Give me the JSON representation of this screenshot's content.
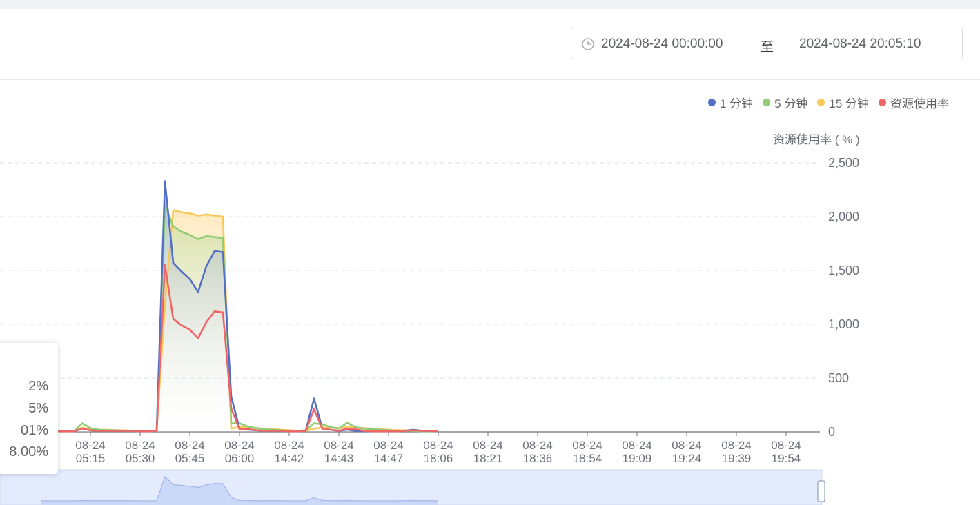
{
  "date_range": {
    "start": "2024-08-24 00:00:00",
    "separator": "至",
    "end": "2024-08-24 20:05:10"
  },
  "tooltip": {
    "rows": [
      "2%",
      "5%",
      "01%",
      "8.00%"
    ]
  },
  "chart_data": {
    "type": "area",
    "ylabel": "资源使用率 ( % )",
    "y_ticks": [
      "2,500",
      "2,000",
      "1,500",
      "1,000",
      "500",
      "0"
    ],
    "ylim": [
      0,
      2500
    ],
    "x_tick_labels": [
      {
        "date": "08-24",
        "time": "05:15"
      },
      {
        "date": "08-24",
        "time": "05:30"
      },
      {
        "date": "08-24",
        "time": "05:45"
      },
      {
        "date": "08-24",
        "time": "06:00"
      },
      {
        "date": "08-24",
        "time": "14:42"
      },
      {
        "date": "08-24",
        "time": "14:43"
      },
      {
        "date": "08-24",
        "time": "14:47"
      },
      {
        "date": "08-24",
        "time": "18:06"
      },
      {
        "date": "08-24",
        "time": "18:21"
      },
      {
        "date": "08-24",
        "time": "18:36"
      },
      {
        "date": "08-24",
        "time": "18:54"
      },
      {
        "date": "08-24",
        "time": "19:09"
      },
      {
        "date": "08-24",
        "time": "19:24"
      },
      {
        "date": "08-24",
        "time": "19:39"
      },
      {
        "date": "08-24",
        "time": "19:54"
      }
    ],
    "grid": true,
    "legend_position": "top-right",
    "series": [
      {
        "name": "1 分钟",
        "color": "#5470c6",
        "values": [
          10,
          5,
          5,
          5,
          5,
          30,
          15,
          10,
          10,
          10,
          10,
          10,
          5,
          5,
          10,
          2330,
          1570,
          1490,
          1420,
          1300,
          1540,
          1680,
          1670,
          330,
          30,
          20,
          15,
          10,
          10,
          10,
          5,
          5,
          10,
          310,
          30,
          20,
          10,
          20,
          10,
          5,
          5,
          5,
          5,
          5,
          10,
          20,
          10,
          10,
          5
        ]
      },
      {
        "name": "5 分钟",
        "color": "#91cc75",
        "values": [
          10,
          5,
          5,
          5,
          5,
          80,
          35,
          20,
          15,
          15,
          10,
          10,
          5,
          5,
          10,
          2110,
          1910,
          1860,
          1830,
          1790,
          1820,
          1810,
          1800,
          80,
          80,
          50,
          35,
          25,
          20,
          15,
          10,
          10,
          15,
          80,
          70,
          45,
          30,
          85,
          45,
          30,
          25,
          20,
          15,
          10,
          10,
          10,
          5,
          5,
          5
        ]
      },
      {
        "name": "15 分钟",
        "color": "#fac858",
        "values": [
          10,
          5,
          5,
          5,
          5,
          40,
          25,
          20,
          20,
          15,
          15,
          10,
          10,
          5,
          10,
          1190,
          2060,
          2040,
          2030,
          2010,
          2020,
          2010,
          2000,
          30,
          45,
          40,
          35,
          30,
          25,
          20,
          15,
          10,
          10,
          30,
          40,
          40,
          35,
          45,
          40,
          35,
          30,
          25,
          20,
          15,
          15,
          10,
          10,
          10,
          5
        ]
      },
      {
        "name": "资源使用率",
        "color": "#ee6666",
        "values": [
          10,
          5,
          5,
          5,
          5,
          30,
          15,
          10,
          10,
          10,
          10,
          10,
          5,
          5,
          10,
          1550,
          1050,
          990,
          950,
          870,
          1020,
          1120,
          1110,
          220,
          25,
          25,
          15,
          10,
          10,
          10,
          5,
          5,
          10,
          210,
          30,
          20,
          10,
          30,
          25,
          10,
          5,
          5,
          5,
          5,
          10,
          15,
          10,
          10,
          5
        ]
      }
    ]
  }
}
